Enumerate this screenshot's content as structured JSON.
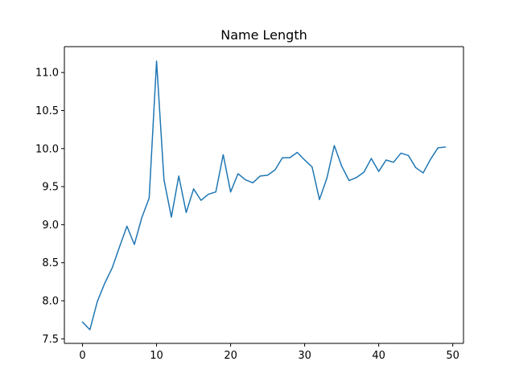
{
  "chart_data": {
    "type": "line",
    "title": "Name Length",
    "xlabel": "",
    "ylabel": "",
    "xlim": [
      -2.45,
      51.45
    ],
    "ylim": [
      7.44,
      11.34
    ],
    "xticks": [
      0,
      10,
      20,
      30,
      40,
      50
    ],
    "yticks": [
      7.5,
      8.0,
      8.5,
      9.0,
      9.5,
      10.0,
      10.5,
      11.0
    ],
    "xtick_labels": [
      "0",
      "10",
      "20",
      "30",
      "40",
      "50"
    ],
    "ytick_labels": [
      "7.5",
      "8.0",
      "8.5",
      "9.0",
      "9.5",
      "10.0",
      "10.5",
      "11.0"
    ],
    "grid": false,
    "legend": "none",
    "line_color": "#1f77b4",
    "series": [
      {
        "x": [
          0,
          1,
          2,
          3,
          4,
          5,
          6,
          7,
          8,
          9,
          10,
          11,
          12,
          13,
          14,
          15,
          16,
          17,
          18,
          19,
          20,
          21,
          22,
          23,
          24,
          25,
          26,
          27,
          28,
          29,
          30,
          31,
          32,
          33,
          34,
          35,
          36,
          37,
          38,
          39,
          40,
          41,
          42,
          43,
          44,
          45,
          46,
          47,
          48,
          49
        ],
        "values": [
          7.72,
          7.62,
          7.99,
          8.23,
          8.43,
          8.71,
          8.98,
          8.74,
          9.09,
          9.35,
          11.15,
          9.59,
          9.1,
          9.64,
          9.16,
          9.47,
          9.32,
          9.4,
          9.43,
          9.92,
          9.43,
          9.67,
          9.59,
          9.55,
          9.64,
          9.65,
          9.72,
          9.88,
          9.88,
          9.95,
          9.85,
          9.76,
          9.33,
          9.61,
          10.04,
          9.77,
          9.58,
          9.62,
          9.69,
          9.87,
          9.7,
          9.85,
          9.82,
          9.94,
          9.91,
          9.75,
          9.68,
          9.86,
          10.01,
          10.02
        ]
      }
    ]
  }
}
